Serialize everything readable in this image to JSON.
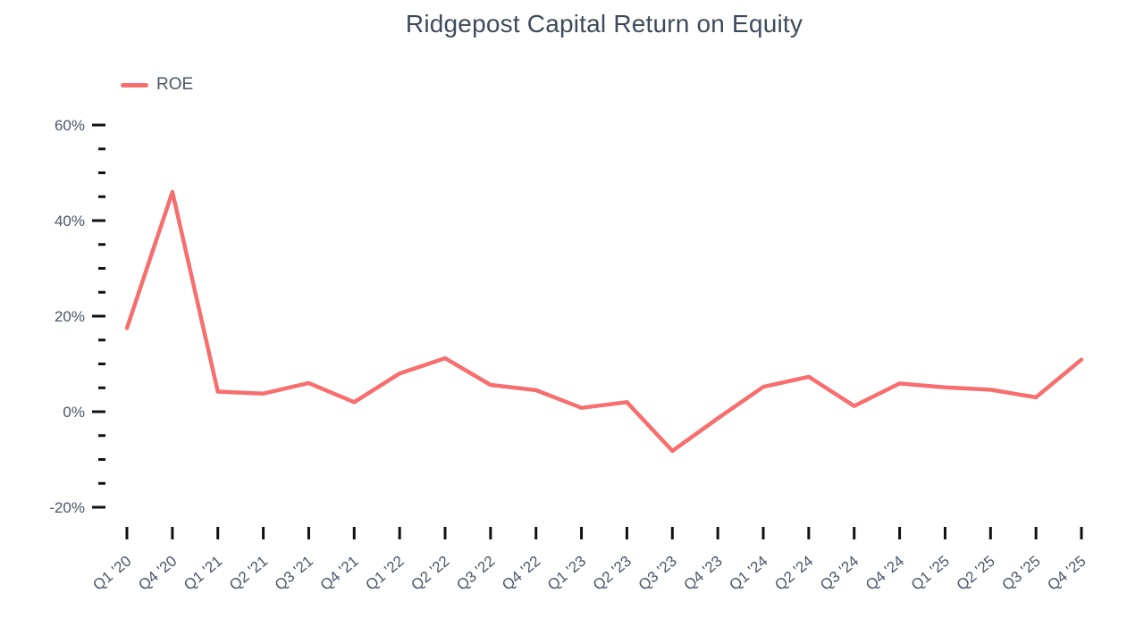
{
  "title": "Ridgepost Capital Return on Equity",
  "legend": {
    "items": [
      {
        "label": "ROE"
      }
    ]
  },
  "colors": {
    "line": "#F76E6E",
    "title_text": "#3E4A5B",
    "axis_text": "#4A5668",
    "tick": "#111111",
    "background": "#FFFFFF"
  },
  "chart_data": {
    "type": "line",
    "title": "Ridgepost Capital Return on Equity",
    "legend_entries": [
      "ROE"
    ],
    "legend_position": "top-left",
    "grid": false,
    "markers": false,
    "xlabel": "",
    "ylabel": "",
    "categories": [
      "Q1 '20",
      "Q4 '20",
      "Q1 '21",
      "Q2 '21",
      "Q3 '21",
      "Q4 '21",
      "Q1 '22",
      "Q2 '22",
      "Q3 '22",
      "Q4 '22",
      "Q1 '23",
      "Q2 '23",
      "Q3 '23",
      "Q4 '23",
      "Q1 '24",
      "Q2 '24",
      "Q3 '24",
      "Q4 '24",
      "Q1 '25",
      "Q2 '25",
      "Q3 '25",
      "Q4 '25"
    ],
    "series": [
      {
        "name": "ROE",
        "color": "#F76E6E",
        "values": [
          17.5,
          46,
          4.2,
          3.8,
          6,
          2,
          8,
          11.2,
          5.6,
          4.5,
          0.8,
          2,
          -8.2,
          -1.4,
          5.2,
          7.3,
          1.2,
          5.9,
          5.1,
          4.6,
          3,
          10.9
        ]
      }
    ],
    "y_axis": {
      "unit": "%",
      "range": [
        -25,
        65
      ],
      "major_ticks": [
        {
          "value": 60,
          "label": "60%"
        },
        {
          "value": 40,
          "label": "40%"
        },
        {
          "value": 20,
          "label": "20%"
        },
        {
          "value": 0,
          "label": "0%"
        },
        {
          "value": -20,
          "label": "-20%"
        }
      ],
      "minor_tick_values": [
        55,
        50,
        45,
        35,
        30,
        25,
        15,
        10,
        5,
        -5,
        -10,
        -15
      ]
    }
  }
}
